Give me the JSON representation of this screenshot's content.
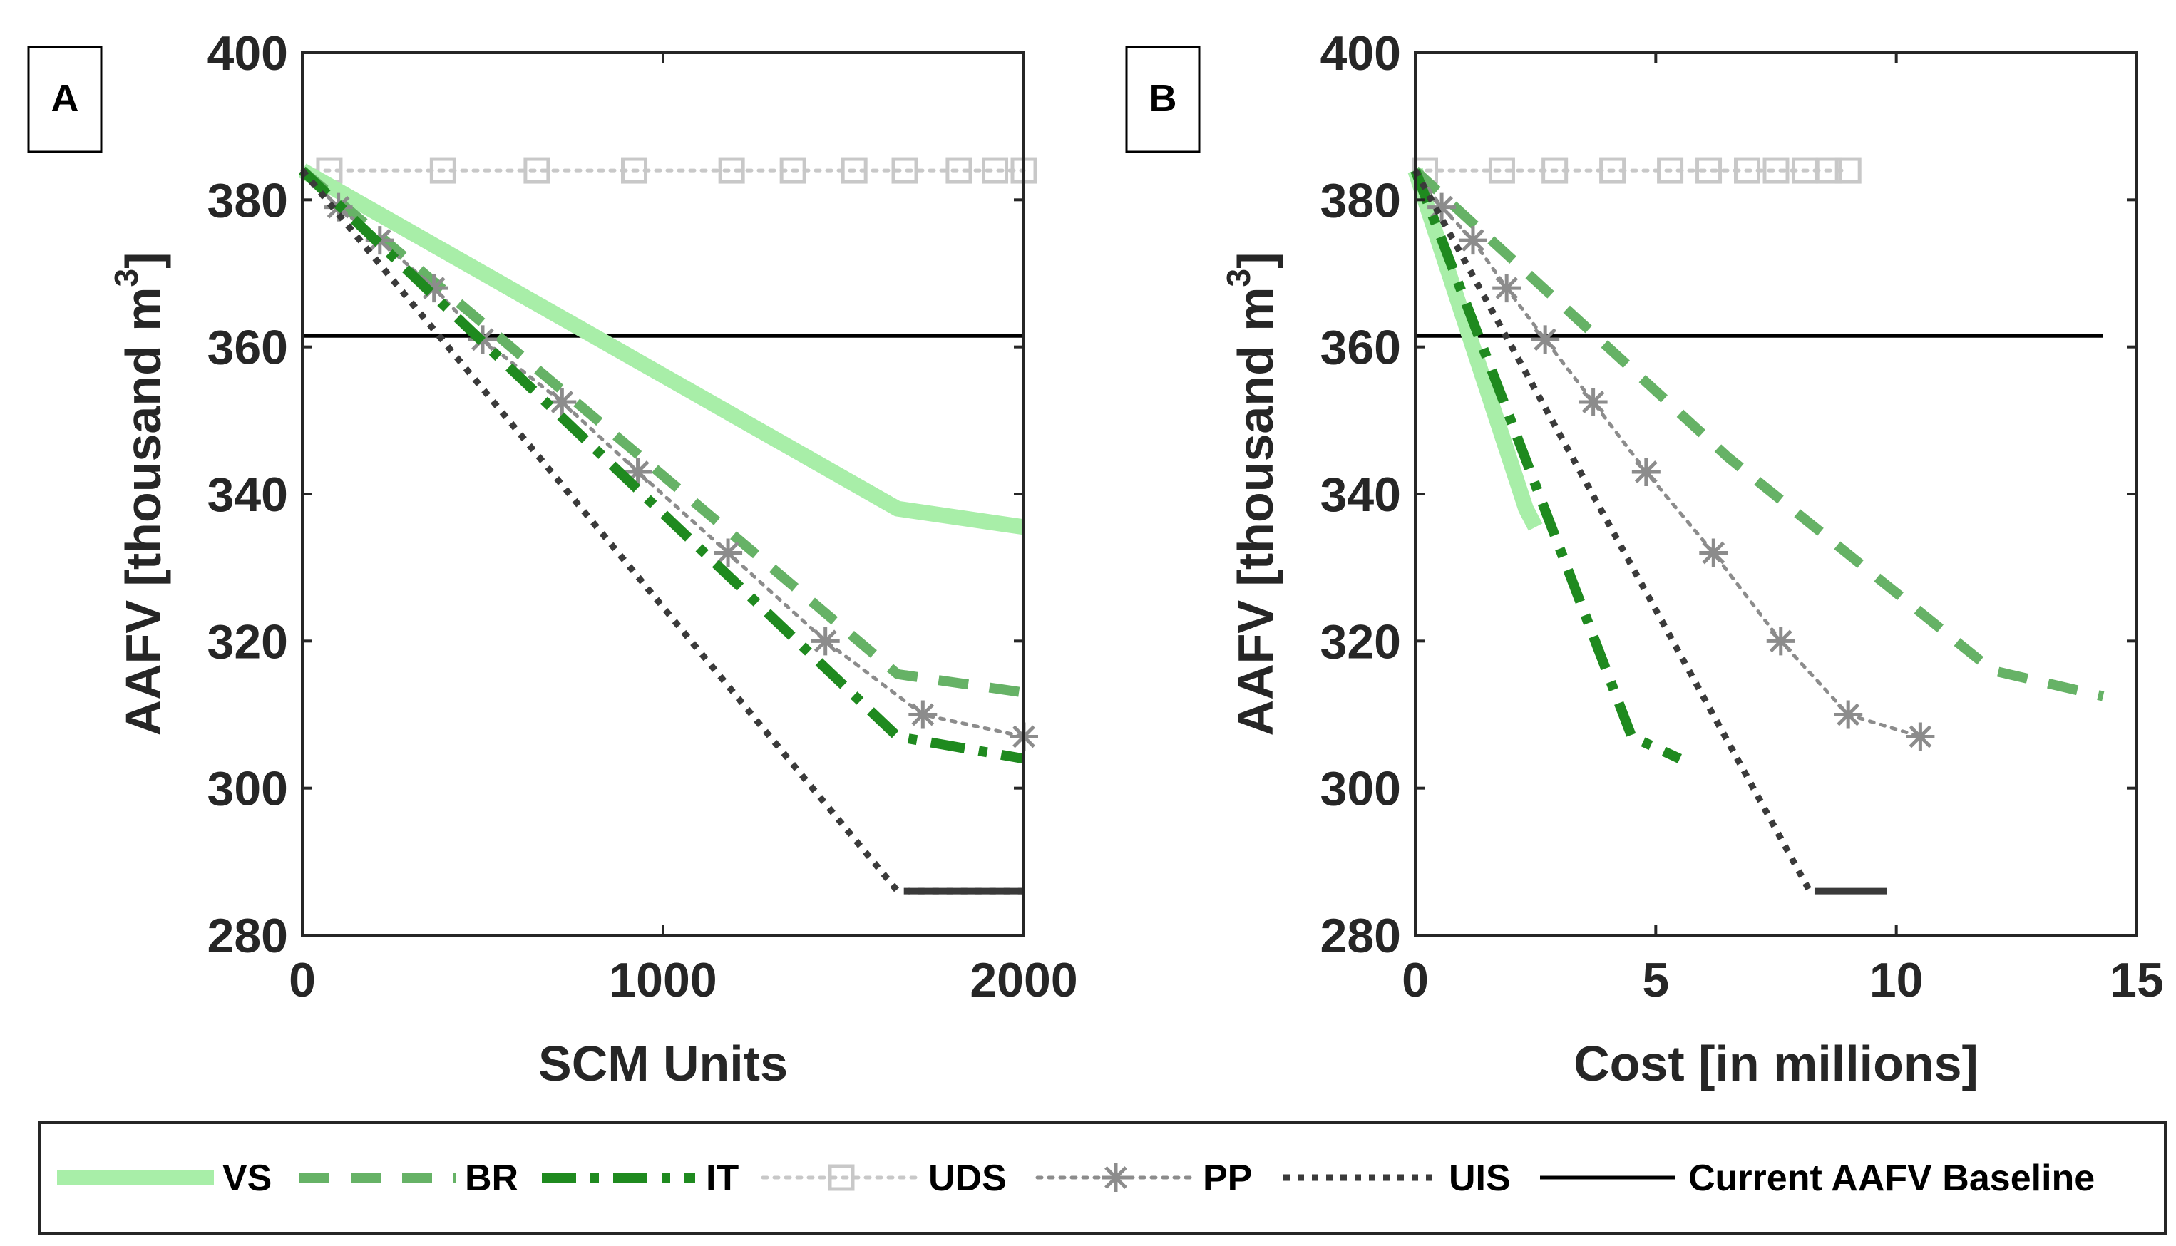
{
  "chart_data": [
    {
      "panel": "A",
      "type": "line",
      "xlabel": "SCM Units",
      "ylabel": "AAFV  [thousand m",
      "ylabel_sup": "3",
      "ylabel_close": "]",
      "xlim": [
        0,
        2000
      ],
      "ylim": [
        280,
        400
      ],
      "xticks": [
        "0",
        "1000",
        "2000"
      ],
      "yticks": [
        "280",
        "300",
        "320",
        "340",
        "360",
        "380",
        "400"
      ],
      "baseline": 361.5,
      "series": [
        {
          "key": "VS",
          "x": [
            0,
            1650,
            2000
          ],
          "y": [
            384,
            338,
            335.5
          ]
        },
        {
          "key": "BR",
          "x": [
            0,
            1650,
            2000
          ],
          "y": [
            384,
            315.5,
            313
          ]
        },
        {
          "key": "IT",
          "x": [
            0,
            1650,
            2000
          ],
          "y": [
            384,
            307,
            304
          ]
        },
        {
          "key": "UDS",
          "x": [
            0,
            75,
            390,
            650,
            920,
            1190,
            1360,
            1530,
            1670,
            1820,
            1920,
            2000
          ],
          "y": [
            384,
            384,
            384,
            384,
            384,
            384,
            384,
            384,
            384,
            384,
            384,
            384
          ]
        },
        {
          "key": "PP",
          "x": [
            0,
            100,
            215,
            365,
            500,
            720,
            930,
            1180,
            1450,
            1720,
            2000
          ],
          "y": [
            384,
            379,
            374.5,
            368,
            361,
            352.5,
            343,
            332,
            320,
            310,
            307
          ]
        },
        {
          "key": "UIS",
          "x": [
            0,
            1650,
            2000
          ],
          "y": [
            384,
            286,
            286
          ]
        },
        {
          "key": "UIS_tail",
          "x": [
            1680,
            2000
          ],
          "y": [
            286,
            286
          ]
        }
      ]
    },
    {
      "panel": "B",
      "type": "line",
      "xlabel": "Cost [in millions]",
      "ylabel": "AAFV [thousand m",
      "ylabel_sup": "3",
      "ylabel_close": "]",
      "xlim": [
        0,
        15
      ],
      "ylim": [
        280,
        400
      ],
      "xticks": [
        "0",
        "5",
        "10",
        "15"
      ],
      "yticks": [
        "280",
        "300",
        "320",
        "340",
        "360",
        "380",
        "400"
      ],
      "baseline": 361.5,
      "baseline_xmax": 14.3,
      "series": [
        {
          "key": "VS",
          "x": [
            0,
            2.3,
            2.5
          ],
          "y": [
            384,
            338,
            335.5
          ]
        },
        {
          "key": "BR",
          "x": [
            0,
            6.5,
            12,
            14.3
          ],
          "y": [
            384,
            345,
            316,
            312.5
          ]
        },
        {
          "key": "IT",
          "x": [
            0,
            4.5,
            5.5
          ],
          "y": [
            384,
            307,
            304
          ]
        },
        {
          "key": "UDS",
          "x": [
            0,
            0.2,
            1.8,
            2.9,
            4.1,
            5.3,
            6.1,
            6.9,
            7.5,
            8.1,
            8.6,
            9.0
          ],
          "y": [
            384,
            384,
            384,
            384,
            384,
            384,
            384,
            384,
            384,
            384,
            384,
            384
          ]
        },
        {
          "key": "PP",
          "x": [
            0,
            0.55,
            1.2,
            1.9,
            2.7,
            3.7,
            4.8,
            6.2,
            7.6,
            9.0,
            10.5
          ],
          "y": [
            384,
            379,
            374.5,
            368,
            361,
            352.5,
            343,
            332,
            320,
            310,
            307
          ]
        },
        {
          "key": "UIS",
          "x": [
            0,
            8.2
          ],
          "y": [
            384,
            286
          ]
        },
        {
          "key": "UIS_tail",
          "x": [
            8.3,
            9.8
          ],
          "y": [
            286,
            286
          ]
        }
      ]
    }
  ],
  "legend": {
    "items": [
      {
        "key": "VS",
        "label": "VS"
      },
      {
        "key": "BR",
        "label": "BR"
      },
      {
        "key": "IT",
        "label": "IT"
      },
      {
        "key": "UDS",
        "label": "UDS"
      },
      {
        "key": "PP",
        "label": "PP"
      },
      {
        "key": "UIS",
        "label": "UIS"
      },
      {
        "key": "BASE",
        "label": "Current AAFV Baseline"
      }
    ]
  },
  "colors": {
    "VS": "#a8eea8",
    "BR": "#66b266",
    "IT": "#1f8a1f",
    "UDS": "#c8c8c8",
    "PP": "#8c8c8c",
    "UIS": "#3a3a3a",
    "BASE": "#000000",
    "axis": "#262626"
  }
}
